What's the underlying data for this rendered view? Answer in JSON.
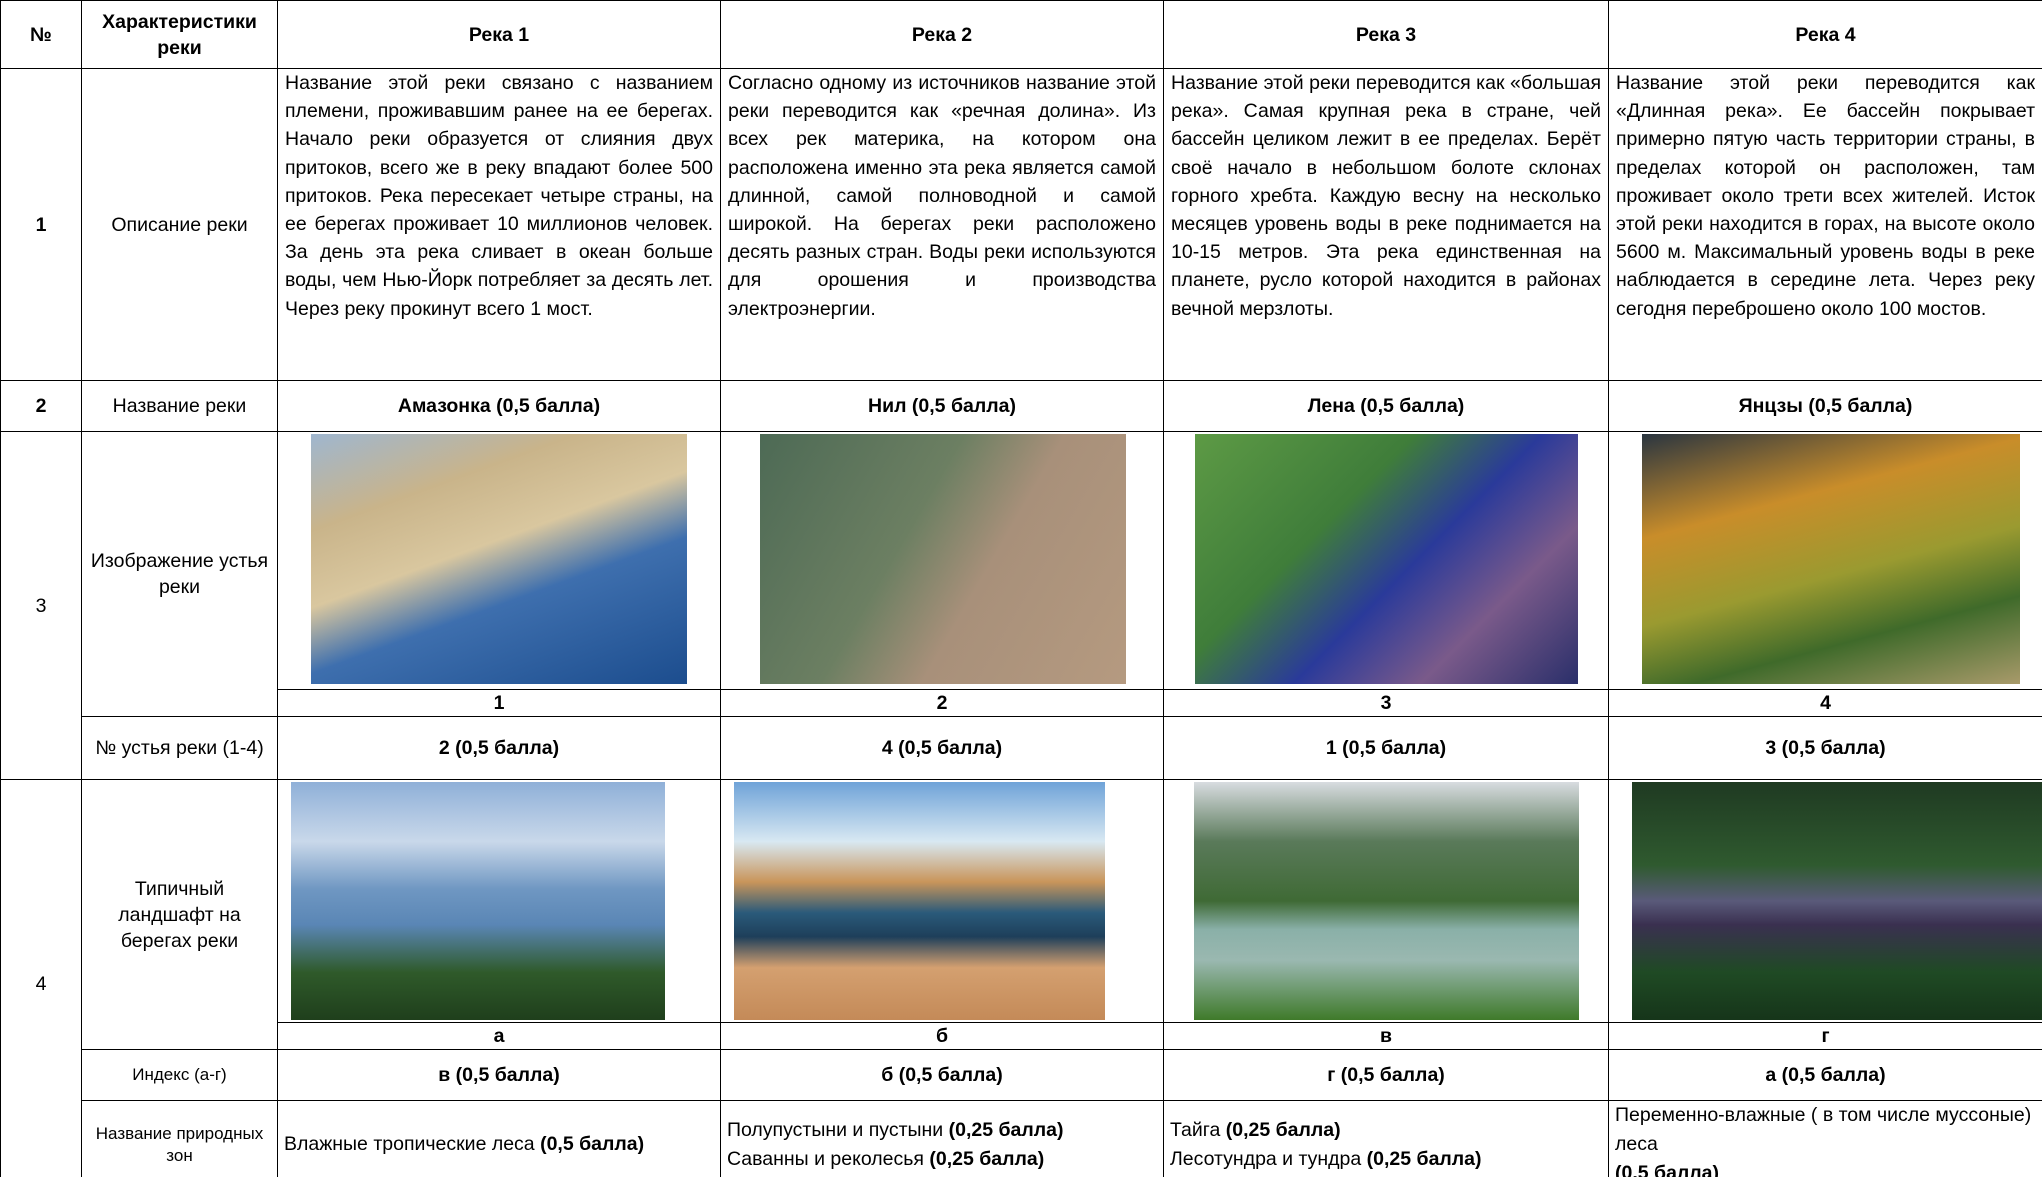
{
  "header": {
    "number": "№",
    "label": "Характеристики реки",
    "rivers": [
      "Река 1",
      "Река 2",
      "Река 3",
      "Река 4"
    ]
  },
  "rows": {
    "description": {
      "number": "1",
      "label": "Описание реки",
      "cells": [
        "Название этой реки связано с названием племени, проживавшим ранее на ее берегах. Начало реки образуется от слияния двух притоков, всего же в реку впадают более 500 притоков. Река пересекает четыре страны, на ее берегах проживает 10 миллионов человек. За день эта река сливает в океан больше воды, чем Нью-Йорк потребляет за десять лет. Через реку прокинут всего 1 мост.",
        "Согласно одному из источников название этой реки переводится как «речная долина». Из всех рек материка, на котором она расположена именно эта река является самой длинной, самой полноводной и самой широкой. На берегах реки расположено десять разных стран. Воды реки используются для орошения и производства электроэнергии.",
        "Название этой реки переводится как «большая река». Самая крупная река в стране, чей бассейн целиком лежит в ее пределах. Берёт своё начало в небольшом болоте склонах горного хребта. Каждую весну на несколько месяцев уровень воды в реке поднимается на 10-15 метров. Эта река единственная на планете, русло которой находится в районах вечной мерзлоты.",
        "Название этой реки переводится как «Длинная река». Ее бассейн покрывает примерно пятую часть территории страны, в пределах которой он расположен, там проживает около трети всех жителей. Исток этой реки находится в горах, на высоте около 5600 м. Максимальный уровень воды в реке наблюдается в середине лета. Через реку сегодня переброшено около 100 мостов."
      ]
    },
    "name": {
      "number": "2",
      "label": "Название реки",
      "cells": [
        "Амазонка (0,5 балла)",
        "Нил (0,5 балла)",
        "Лена (0,5 балла)",
        "Янцзы (0,5 балла)"
      ]
    },
    "mouth": {
      "number": "3",
      "label": "Изображение устья реки",
      "image_labels": [
        "1",
        "2",
        "3",
        "4"
      ],
      "answer_label": "№ устья реки (1-4)",
      "answers": [
        "2 (0,5 балла)",
        "4 (0,5 балла)",
        "1 (0,5 балла)",
        "3 (0,5 балла)"
      ]
    },
    "landscape": {
      "number": "4",
      "label": "Типичный ландшафт на берегах реки",
      "image_labels": [
        "а",
        "б",
        "в",
        "г"
      ],
      "index_label": "Индекс (а-г)",
      "answers": [
        "в (0,5 балла)",
        "б  (0,5 балла)",
        "г (0,5 балла)",
        "а (0,5 балла)"
      ],
      "zones_label": "Название природных зон",
      "zones": [
        [
          {
            "text": "Влажные тропические леса",
            "score": "(0,5 балла)"
          }
        ],
        [
          {
            "text": "Полупустыни и пустыни",
            "score": "(0,25 балла)"
          },
          {
            "text": "Саванны и реколесья",
            "score": "(0,25 балла)"
          }
        ],
        [
          {
            "text": "Тайга",
            "score": "(0,25 балла)"
          },
          {
            "text": "Лесотундра  и тундра",
            "score": "(0,25 балла)"
          }
        ],
        [
          {
            "text": "Переменно-влажные ( в том числе муссоные) леса"
          },
          {
            "score": "(0,5 балла)"
          }
        ]
      ]
    }
  }
}
